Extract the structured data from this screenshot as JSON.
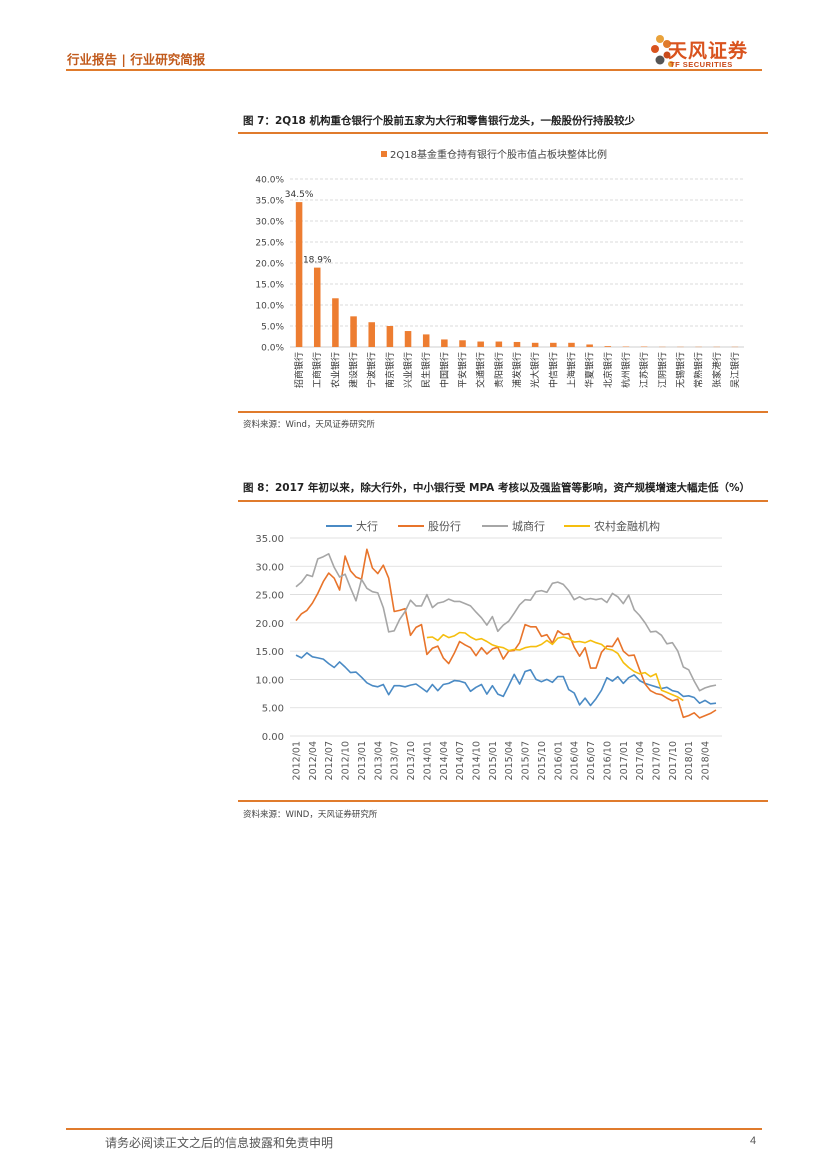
{
  "header": {
    "breadcrumb": "行业报告 | 行业研究简报",
    "logo_cn": "天风证券",
    "logo_en": "TF SECURITIES"
  },
  "figure7": {
    "title": "图 7：2Q18 机构重仓银行个股前五家为大行和零售银行龙头，一般股份行持股较少",
    "source": "资料来源：Wind，天风证券研究所"
  },
  "figure8": {
    "title": "图 8：2017 年初以来，除大行外，中小银行受 MPA 考核以及强监管等影响，资产规模增速大幅走低（%）",
    "source": "资料来源：WIND，天风证券研究所"
  },
  "chart_data": [
    {
      "type": "bar",
      "title": "",
      "legend": [
        "2Q18基金重仓持有银行个股市值占板块整体比例"
      ],
      "legend_position": "top",
      "categories": [
        "招商银行",
        "工商银行",
        "农业银行",
        "建设银行",
        "宁波银行",
        "南京银行",
        "兴业银行",
        "民生银行",
        "中国银行",
        "平安银行",
        "交通银行",
        "贵阳银行",
        "浦发银行",
        "光大银行",
        "中信银行",
        "上海银行",
        "华夏银行",
        "北京银行",
        "杭州银行",
        "江苏银行",
        "江阴银行",
        "无锡银行",
        "常熟银行",
        "张家港行",
        "吴江银行"
      ],
      "series": [
        {
          "name": "2Q18基金重仓持有银行个股市值占板块整体比例",
          "values": [
            34.5,
            18.9,
            11.6,
            7.3,
            5.9,
            5.0,
            3.8,
            3.0,
            1.8,
            1.6,
            1.3,
            1.3,
            1.2,
            1.0,
            1.0,
            1.0,
            0.6,
            0.2,
            0.1,
            0.1,
            0.05,
            0.05,
            0.05,
            0.05,
            0.05
          ],
          "color": "#ed7d31"
        }
      ],
      "data_labels": [
        {
          "index": 0,
          "text": "34.5%"
        },
        {
          "index": 1,
          "text": "18.9%"
        }
      ],
      "y_ticks": [
        "0.0%",
        "5.0%",
        "10.0%",
        "15.0%",
        "20.0%",
        "25.0%",
        "30.0%",
        "35.0%",
        "40.0%"
      ],
      "ylim": [
        0,
        40
      ],
      "grid": true
    },
    {
      "type": "line",
      "title": "",
      "legend_position": "top",
      "x_tick_labels": [
        "2012/01",
        "2012/04",
        "2012/07",
        "2012/10",
        "2013/01",
        "2013/04",
        "2013/07",
        "2013/10",
        "2014/01",
        "2014/04",
        "2014/07",
        "2014/10",
        "2015/01",
        "2015/04",
        "2015/07",
        "2015/10",
        "2016/01",
        "2016/04",
        "2016/07",
        "2016/10",
        "2017/01",
        "2017/04",
        "2017/07",
        "2017/10",
        "2018/01",
        "2018/04"
      ],
      "y_ticks": [
        "0.00",
        "5.00",
        "10.00",
        "15.00",
        "20.00",
        "25.00",
        "30.00",
        "35.00"
      ],
      "ylim": [
        0,
        35
      ],
      "grid": true,
      "series": [
        {
          "name": "大行",
          "color": "#4a8ac4",
          "start_index": 0,
          "values": [
            14.3,
            13.8,
            14.7,
            14.0,
            13.8,
            13.6,
            12.8,
            12.1,
            13.1,
            12.2,
            11.2,
            11.3,
            10.4,
            9.4,
            8.9,
            8.7,
            9.1,
            7.3,
            8.9,
            8.9,
            8.7,
            9.0,
            9.2,
            8.5,
            7.8,
            9.1,
            8.0,
            9.1,
            9.3,
            9.8,
            9.7,
            9.4,
            7.9,
            8.6,
            9.1,
            7.4,
            8.9,
            7.4,
            7.0,
            8.9,
            10.9,
            9.2,
            11.4,
            11.7,
            10.0,
            9.6,
            10.0,
            9.5,
            10.5,
            10.5,
            8.2,
            7.6,
            5.5,
            6.7,
            5.4,
            6.6,
            8.1,
            10.3,
            9.7,
            10.5,
            9.3,
            10.3,
            10.8,
            9.8,
            9.3,
            9.0,
            8.7,
            8.4,
            8.6,
            8.0,
            7.8,
            7.0,
            7.1,
            6.8,
            5.8,
            6.3,
            5.7,
            5.8
          ]
        },
        {
          "name": "股份行",
          "color": "#e8742b",
          "start_index": 0,
          "values": [
            20.4,
            21.6,
            22.2,
            23.5,
            25.2,
            27.3,
            28.8,
            27.9,
            25.8,
            31.8,
            29.2,
            28.1,
            27.7,
            33.0,
            29.7,
            28.7,
            30.2,
            27.9,
            22.0,
            22.2,
            22.5,
            17.8,
            19.2,
            19.7,
            14.4,
            15.5,
            15.9,
            13.8,
            12.8,
            14.6,
            16.7,
            16.1,
            15.6,
            14.2,
            15.6,
            14.5,
            15.4,
            15.7,
            13.6,
            15.0,
            15.1,
            16.5,
            19.7,
            19.3,
            19.3,
            17.6,
            17.9,
            16.4,
            18.6,
            17.9,
            18.1,
            15.7,
            14.1,
            15.6,
            12.0,
            12.0,
            14.8,
            15.9,
            15.8,
            17.3,
            15.0,
            14.2,
            14.3,
            11.7,
            9.2,
            8.0,
            7.5,
            7.3,
            6.7,
            6.2,
            6.5,
            3.3,
            3.6,
            4.1,
            3.2,
            3.6,
            4.0,
            4.6
          ]
        },
        {
          "name": "城商行",
          "color": "#a6a6a6",
          "start_index": 0,
          "values": [
            26.4,
            27.2,
            28.5,
            28.2,
            31.3,
            31.7,
            32.2,
            29.8,
            28.1,
            28.6,
            26.2,
            23.9,
            27.7,
            26.1,
            25.5,
            25.3,
            22.7,
            18.4,
            18.6,
            20.6,
            22.0,
            24.0,
            23.0,
            23.0,
            25.0,
            22.7,
            23.5,
            23.7,
            24.2,
            23.8,
            23.8,
            23.4,
            23.0,
            21.9,
            20.9,
            19.6,
            21.1,
            18.5,
            19.6,
            20.3,
            21.7,
            23.2,
            24.1,
            24.0,
            25.5,
            25.7,
            25.4,
            27.0,
            27.2,
            26.8,
            25.7,
            24.1,
            24.6,
            24.1,
            24.3,
            24.1,
            24.3,
            23.6,
            25.2,
            24.6,
            23.4,
            24.9,
            22.3,
            21.3,
            20.0,
            18.4,
            18.5,
            17.8,
            16.3,
            16.5,
            15.0,
            12.2,
            11.7,
            9.7,
            8.0,
            8.5,
            8.8,
            9.0
          ]
        },
        {
          "name": "农村金融机构",
          "color": "#f5be0e",
          "start_index": 24,
          "values": [
            17.4,
            17.5,
            16.9,
            17.9,
            17.4,
            17.7,
            18.3,
            18.2,
            17.5,
            17.0,
            17.2,
            16.7,
            16.1,
            15.8,
            15.6,
            15.1,
            15.3,
            15.2,
            15.6,
            15.8,
            15.8,
            16.2,
            16.9,
            16.2,
            17.3,
            17.5,
            17.2,
            16.6,
            16.7,
            16.5,
            16.9,
            16.5,
            16.2,
            15.4,
            15.2,
            14.6,
            13.0,
            12.1,
            11.4,
            11.0,
            11.2,
            10.5,
            11.0,
            8.1,
            7.7,
            7.3,
            6.9,
            6.3
          ]
        }
      ]
    }
  ],
  "footer": {
    "disclaimer": "请务必阅读正文之后的信息披露和免责申明",
    "page_number": "4"
  }
}
